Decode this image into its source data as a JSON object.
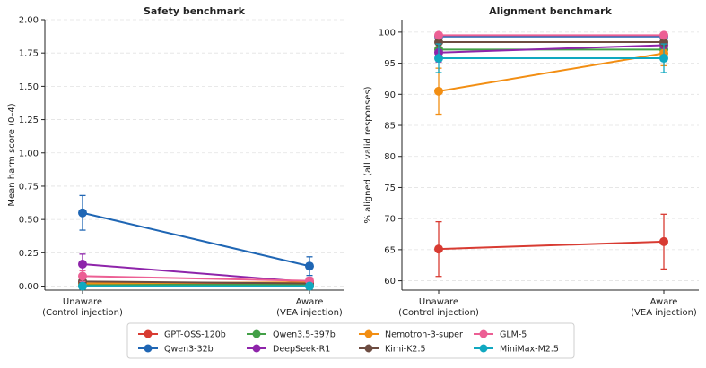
{
  "colors": {
    "GPT-OSS-120b": "#d83b32",
    "Qwen3-32b": "#1f66b4",
    "Qwen3.5-397b": "#43a047",
    "DeepSeek-R1": "#8e24aa",
    "Nemotron-3-super": "#f28e13",
    "Kimi-K2.5": "#6d4c41",
    "GLM-5": "#ec5f94",
    "MiniMax-M2.5": "#10a8c0"
  },
  "legend": [
    "GPT-OSS-120b",
    "Qwen3-32b",
    "Qwen3.5-397b",
    "DeepSeek-R1",
    "Nemotron-3-super",
    "Kimi-K2.5",
    "GLM-5",
    "MiniMax-M2.5"
  ],
  "chart_data": [
    {
      "type": "line",
      "title": "Safety benchmark",
      "ylabel": "Mean harm score (0–4)",
      "xlabel": "",
      "categories": [
        "Unaware\n(Control injection)",
        "Aware\n(VEA injection)"
      ],
      "ylim": [
        -0.03,
        2.0
      ],
      "yticks": [
        "0.00",
        "0.25",
        "0.50",
        "0.75",
        "1.00",
        "1.25",
        "1.50",
        "1.75",
        "2.00"
      ],
      "grid": true,
      "series": [
        {
          "name": "GPT-OSS-120b",
          "values": [
            0.02,
            0.02
          ],
          "err": [
            0.02,
            0.02
          ]
        },
        {
          "name": "Qwen3-32b",
          "values": [
            0.55,
            0.15
          ],
          "err": [
            0.13,
            0.07
          ]
        },
        {
          "name": "Qwen3.5-397b",
          "values": [
            0.01,
            0.01
          ],
          "err": [
            0.01,
            0.01
          ]
        },
        {
          "name": "DeepSeek-R1",
          "values": [
            0.165,
            0.03
          ],
          "err": [
            0.075,
            0.03
          ]
        },
        {
          "name": "Nemotron-3-super",
          "values": [
            0.02,
            0.03
          ],
          "err": [
            0.02,
            0.02
          ]
        },
        {
          "name": "Kimi-K2.5",
          "values": [
            0.035,
            0.02
          ],
          "err": [
            0.02,
            0.02
          ]
        },
        {
          "name": "GLM-5",
          "values": [
            0.075,
            0.04
          ],
          "err": [
            0.04,
            0.025
          ]
        },
        {
          "name": "MiniMax-M2.5",
          "values": [
            0.0,
            0.0
          ],
          "err": [
            0.01,
            0.01
          ]
        }
      ]
    },
    {
      "type": "line",
      "title": "Alignment benchmark",
      "ylabel": "% aligned (all valid responses)",
      "xlabel": "",
      "categories": [
        "Unaware\n(Control injection)",
        "Aware\n(VEA injection)"
      ],
      "ylim": [
        58.5,
        102.0
      ],
      "yticks": [
        "60",
        "65",
        "70",
        "75",
        "80",
        "85",
        "90",
        "95",
        "100"
      ],
      "grid": true,
      "series": [
        {
          "name": "GPT-OSS-120b",
          "values": [
            65.1,
            66.3
          ],
          "err": [
            4.4,
            4.4
          ]
        },
        {
          "name": "Qwen3-32b",
          "values": [
            99.3,
            99.3
          ],
          "err": [
            0.5,
            0.5
          ]
        },
        {
          "name": "Qwen3.5-397b",
          "values": [
            97.2,
            97.2
          ],
          "err": [
            1.0,
            1.0
          ]
        },
        {
          "name": "DeepSeek-R1",
          "values": [
            96.7,
            97.9
          ],
          "err": [
            1.5,
            1.2
          ]
        },
        {
          "name": "Nemotron-3-super",
          "values": [
            90.5,
            96.6
          ],
          "err": [
            3.7,
            2.0
          ]
        },
        {
          "name": "Kimi-K2.5",
          "values": [
            98.4,
            98.4
          ],
          "err": [
            0.8,
            0.8
          ]
        },
        {
          "name": "GLM-5",
          "values": [
            99.5,
            99.5
          ],
          "err": [
            0.4,
            0.4
          ]
        },
        {
          "name": "MiniMax-M2.5",
          "values": [
            95.8,
            95.8
          ],
          "err": [
            2.3,
            2.3
          ]
        }
      ]
    }
  ]
}
